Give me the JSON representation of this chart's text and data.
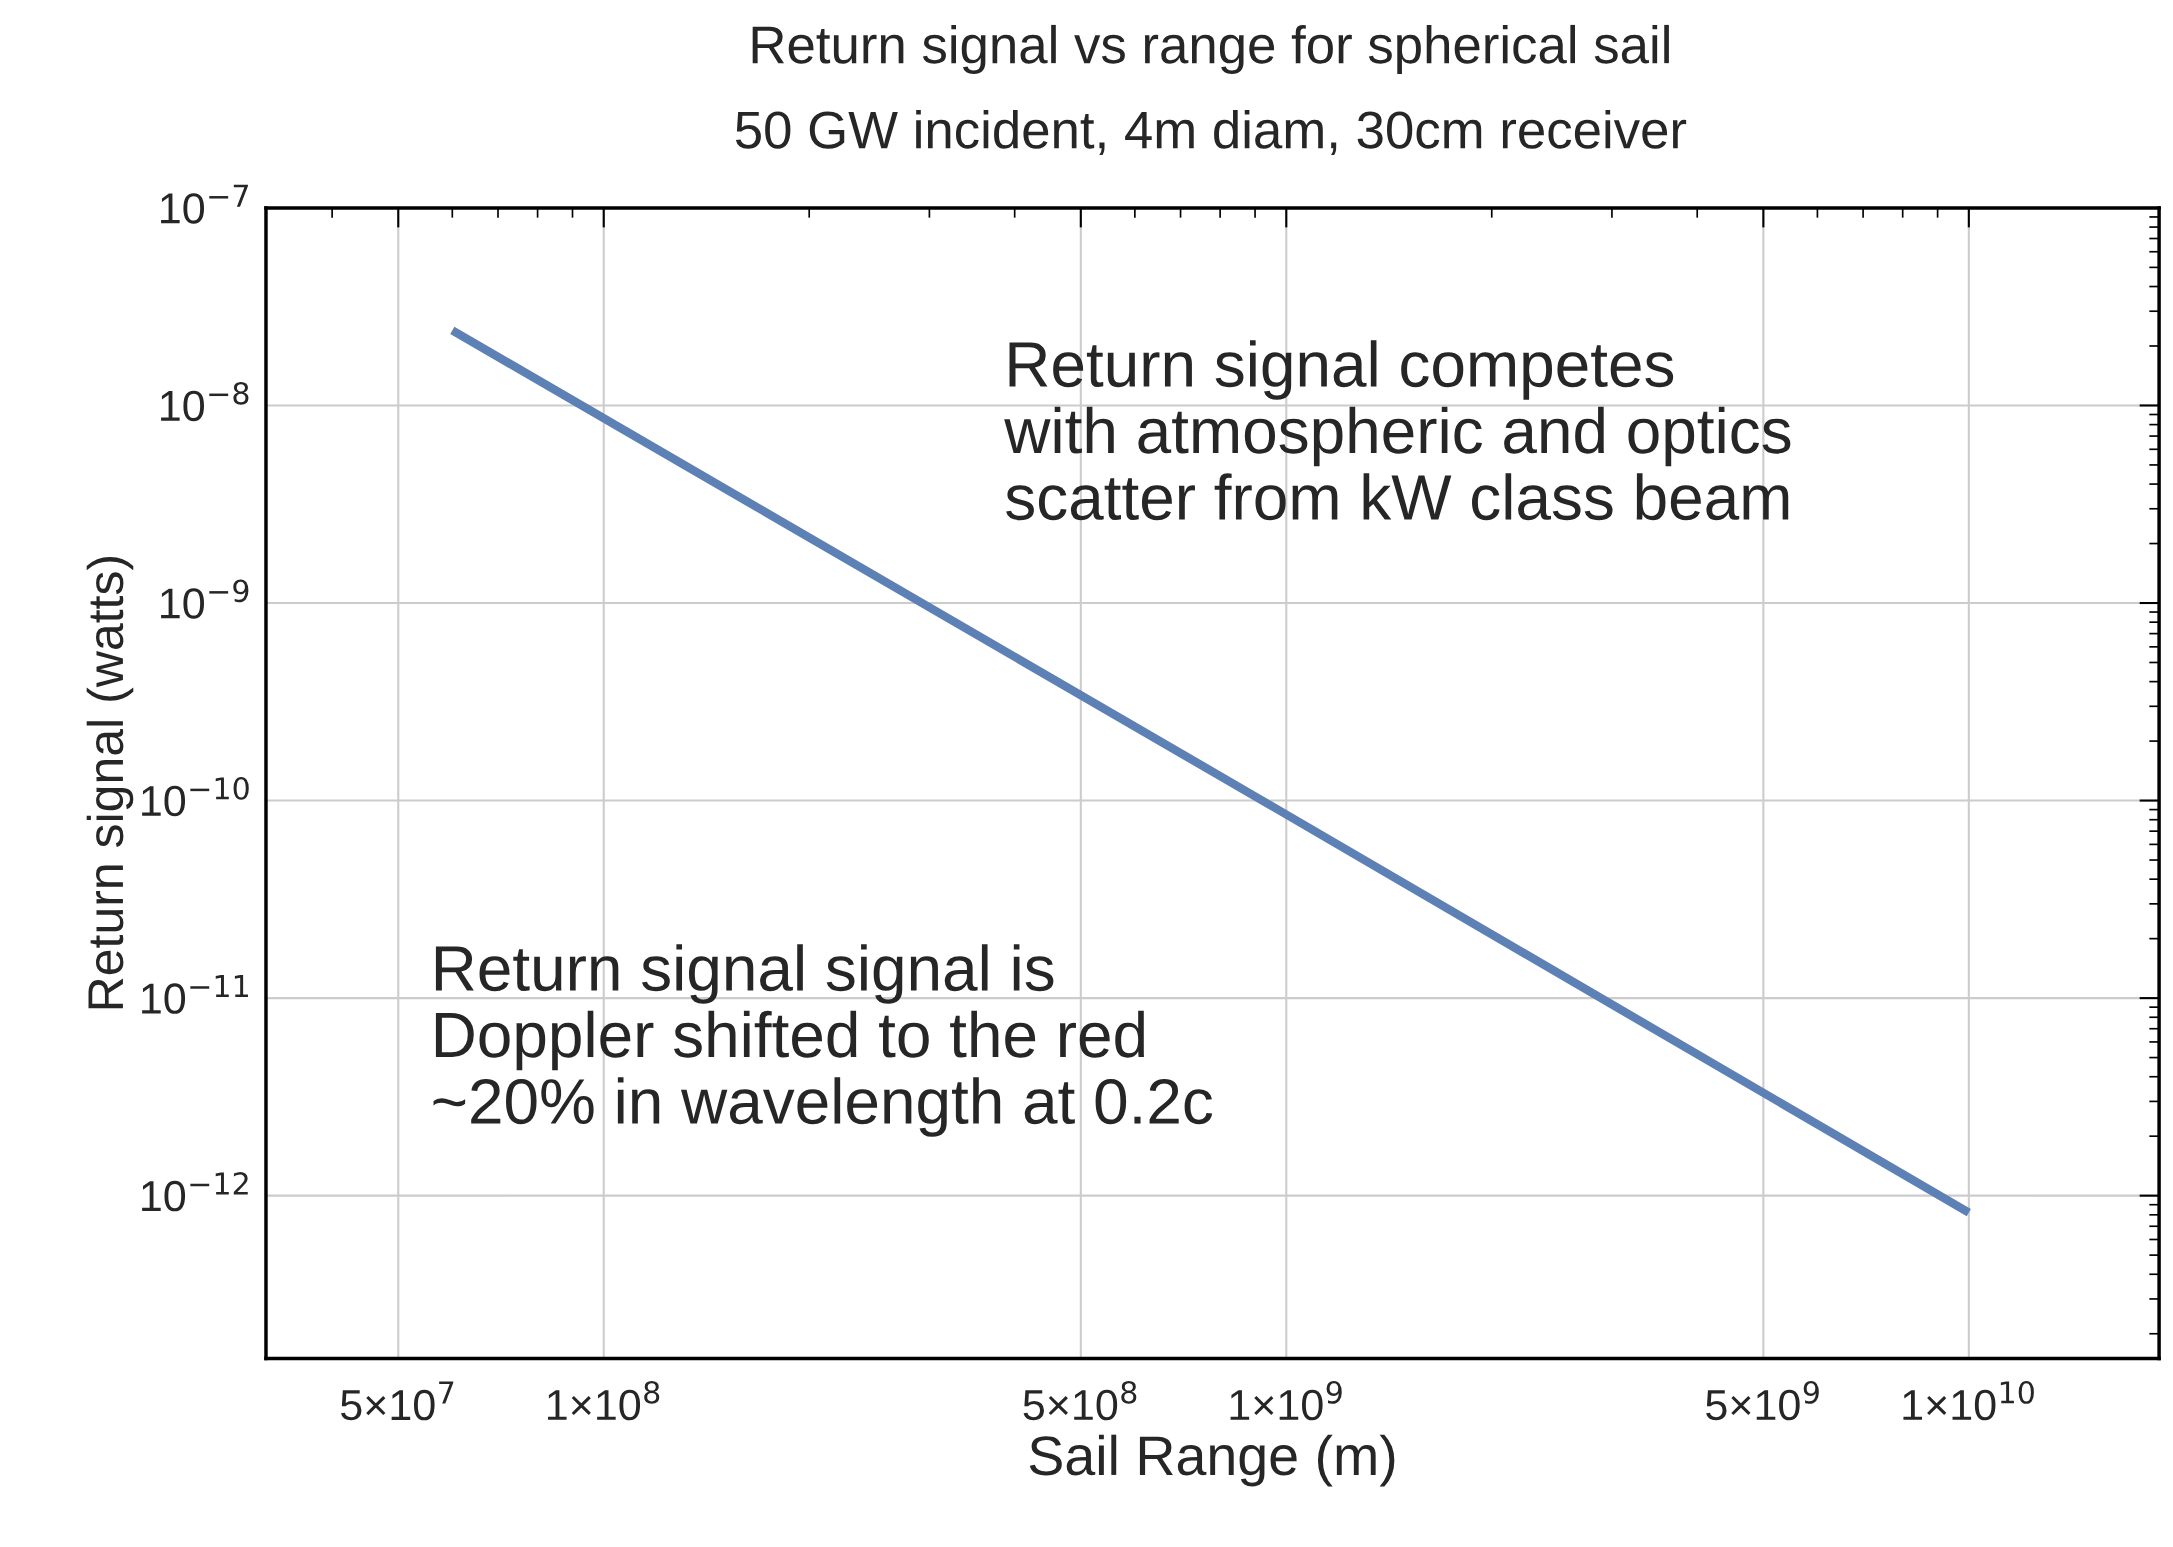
{
  "chart_data": {
    "type": "line",
    "title": "Return signal vs range for spherical sail",
    "subtitle": "50 GW incident, 4m diam, 30cm receiver",
    "xlabel": "Sail Range (m)",
    "ylabel": "Return signal (watts)",
    "log": "xy",
    "series": [
      {
        "color": "#5e81b5",
        "x": [
          60000000.0,
          1000000000.0,
          10000000000.0
        ],
        "values": [
          2.4e-08,
          8.5e-11,
          8.2e-13
        ]
      }
    ],
    "xlim": [
      32000000.0,
      19000000000.0
    ],
    "ylim": [
      1.5e-13,
      1e-07
    ],
    "xticks": [
      {
        "value": 50000000.0,
        "label": "5×10$^{7}$"
      },
      {
        "value": 100000000.0,
        "label": "1×10$^{8}$"
      },
      {
        "value": 500000000.0,
        "label": "5×10$^{8}$"
      },
      {
        "value": 1000000000.0,
        "label": "1×10$^{9}$"
      },
      {
        "value": 5000000000.0,
        "label": "5×10$^{9}$"
      },
      {
        "value": 10000000000.0,
        "label": "1×10$^{10}$"
      }
    ],
    "yticks": [
      {
        "value": 1e-12,
        "label": "10$^{−12}$"
      },
      {
        "value": 1e-11,
        "label": "10$^{−11}$"
      },
      {
        "value": 1e-10,
        "label": "10$^{−10}$"
      },
      {
        "value": 1e-09,
        "label": "10$^{−9}$"
      },
      {
        "value": 1e-08,
        "label": "10$^{−8}$"
      },
      {
        "value": 1e-07,
        "label": "10$^{−7}$"
      }
    ],
    "grid": true,
    "line_style": "solid",
    "marker": "none",
    "annotations": [
      "Return signal competes\nwith atmospheric and optics\nscatter from kW class beam",
      "Return signal signal is\nDoppler shifted to the red\n~20% in wavelength at 0.2c"
    ]
  }
}
